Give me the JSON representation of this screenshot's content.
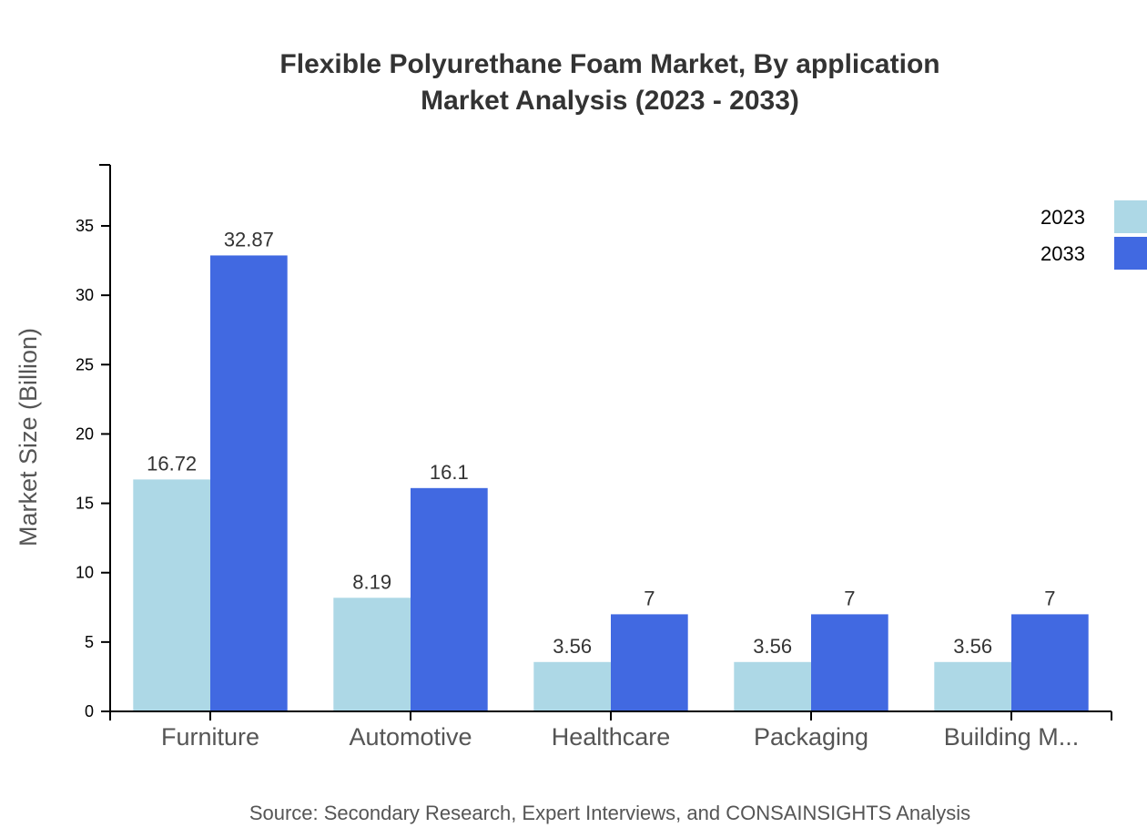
{
  "chart_data": {
    "type": "bar",
    "title_lines": [
      "Flexible Polyurethane Foam Market, By application",
      "Market Analysis (2023 - 2033)"
    ],
    "xlabel": "",
    "ylabel": "Market Size (Billion)",
    "categories": [
      "Furniture",
      "Automotive",
      "Healthcare",
      "Packaging",
      "Building M..."
    ],
    "series": [
      {
        "name": "2023",
        "color": "#add8e6",
        "values": [
          16.72,
          8.19,
          3.56,
          3.56,
          3.56
        ]
      },
      {
        "name": "2033",
        "color": "#4169e1",
        "values": [
          32.87,
          16.1,
          7,
          7,
          7
        ]
      }
    ],
    "ylim": [
      0,
      39.4
    ],
    "yticks": [
      0,
      5,
      10,
      15,
      20,
      25,
      30,
      35
    ],
    "grid": false,
    "legend_position": "top-right",
    "source": "Source: Secondary Research, Expert Interviews, and CONSAINSIGHTS Analysis"
  }
}
